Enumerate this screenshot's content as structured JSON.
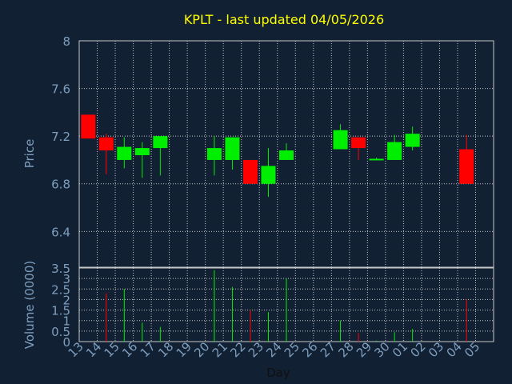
{
  "chart_data": {
    "type": "candlestick",
    "title": "KPLT - last updated 04/05/2026",
    "xlabel": "Day",
    "price_panel": {
      "ylabel": "Price",
      "ylim": [
        6.1,
        8.0
      ],
      "yticks": [
        "8",
        "7.6",
        "7.2",
        "6.8",
        "6.4"
      ],
      "ytick_values": [
        8.0,
        7.6,
        7.2,
        6.8,
        6.4
      ]
    },
    "volume_panel": {
      "ylabel": "Volume (0000)",
      "ylim": [
        0,
        3.5
      ],
      "yticks": [
        "3.5",
        "3",
        "2.5",
        "2",
        "1.5",
        "1",
        "0.5",
        "0"
      ],
      "ytick_values": [
        3.5,
        3.0,
        2.5,
        2.0,
        1.5,
        1.0,
        0.5,
        0.0
      ]
    },
    "x_labels": [
      "13",
      "14",
      "15",
      "16",
      "17",
      "18",
      "19",
      "20",
      "21",
      "22",
      "23",
      "24",
      "25",
      "26",
      "27",
      "28",
      "29",
      "30",
      "01",
      "02",
      "03",
      "04",
      "05"
    ],
    "candles": [
      {
        "day": "13",
        "open": 7.38,
        "high": 7.38,
        "low": 7.18,
        "close": 7.18,
        "volume": 0.0
      },
      {
        "day": "14",
        "open": 7.19,
        "high": 7.22,
        "low": 6.88,
        "close": 7.08,
        "volume": 2.3
      },
      {
        "day": "15",
        "open": 7.0,
        "high": 7.19,
        "low": 6.93,
        "close": 7.11,
        "volume": 2.5
      },
      {
        "day": "16",
        "open": 7.04,
        "high": 7.15,
        "low": 6.85,
        "close": 7.1,
        "volume": 0.9
      },
      {
        "day": "17",
        "open": 7.1,
        "high": 7.2,
        "low": 6.87,
        "close": 7.2,
        "volume": 0.7
      },
      {
        "day": "20",
        "open": 7.0,
        "high": 7.2,
        "low": 6.87,
        "close": 7.1,
        "volume": 3.4
      },
      {
        "day": "21",
        "open": 7.0,
        "high": 7.19,
        "low": 6.92,
        "close": 7.19,
        "volume": 2.6
      },
      {
        "day": "22",
        "open": 7.0,
        "high": 7.0,
        "low": 6.8,
        "close": 6.8,
        "volume": 1.5
      },
      {
        "day": "23",
        "open": 6.8,
        "high": 7.1,
        "low": 6.69,
        "close": 6.95,
        "volume": 1.4
      },
      {
        "day": "24",
        "open": 7.0,
        "high": 7.14,
        "low": 7.0,
        "close": 7.08,
        "volume": 3.0
      },
      {
        "day": "27",
        "open": 7.09,
        "high": 7.3,
        "low": 7.09,
        "close": 7.25,
        "volume": 1.0
      },
      {
        "day": "28",
        "open": 7.19,
        "high": 7.19,
        "low": 7.0,
        "close": 7.1,
        "volume": 0.4
      },
      {
        "day": "29",
        "open": 7.0,
        "high": 7.02,
        "low": 7.0,
        "close": 7.01,
        "volume": 0.05
      },
      {
        "day": "30",
        "open": 7.0,
        "high": 7.21,
        "low": 7.0,
        "close": 7.15,
        "volume": 0.45
      },
      {
        "day": "01",
        "open": 7.11,
        "high": 7.28,
        "low": 7.08,
        "close": 7.22,
        "volume": 0.6
      },
      {
        "day": "04",
        "open": 7.09,
        "high": 7.21,
        "low": 6.8,
        "close": 6.8,
        "volume": 2.0
      }
    ],
    "colors": {
      "background": "#112033",
      "grid": "#c8c8c8",
      "up": "#00ee00",
      "down": "#ff0000",
      "title": "#ffff00",
      "axis_text": "#7f9fbf",
      "xlabel_text": "#101010"
    },
    "grid": true
  }
}
